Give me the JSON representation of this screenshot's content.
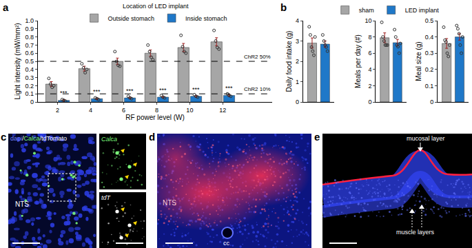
{
  "chart_data": [
    {
      "type": "bar",
      "panel_label": "a",
      "legend_title": "Location of LED implant",
      "legend": "top",
      "categories": [
        2,
        4,
        6,
        8,
        10,
        12
      ],
      "x_label": "RF power level (W)",
      "y_label": "Light intensity (mW/mm²)",
      "ylim": [
        0,
        1
      ],
      "yticks": [
        0,
        0.1,
        0.2,
        0.3,
        0.4,
        0.5,
        0.6,
        0.7,
        0.8,
        0.9,
        {
          "value": 1,
          "label": "1.0"
        }
      ],
      "series": [
        {
          "name": "Outside stomach",
          "color": "#a6a6a6",
          "values": [
            0.22,
            0.41,
            0.5,
            0.6,
            0.67,
            0.74
          ],
          "errors": [
            0.03,
            0.03,
            0.04,
            0.04,
            0.05,
            0.05
          ],
          "points": [
            [
              0.29,
              0.22,
              0.18,
              0.2
            ],
            [
              0.47,
              0.42,
              0.36,
              0.4
            ],
            [
              0.62,
              0.5,
              0.45,
              0.44
            ],
            [
              0.7,
              0.62,
              0.55,
              0.52
            ],
            [
              0.82,
              0.68,
              0.62,
              0.6
            ],
            [
              0.88,
              0.75,
              0.67,
              0.65
            ]
          ]
        },
        {
          "name": "Inside stomach",
          "color": "#1f78c8",
          "values": [
            0.02,
            0.04,
            0.05,
            0.06,
            0.07,
            0.08
          ],
          "errors": [
            0.01,
            0.01,
            0.01,
            0.01,
            0.01,
            0.01
          ],
          "points": [
            [
              0.03,
              0.02,
              0.01
            ],
            [
              0.05,
              0.04,
              0.03
            ],
            [
              0.07,
              0.05,
              0.04
            ],
            [
              0.08,
              0.06,
              0.05
            ],
            [
              0.09,
              0.07,
              0.06
            ],
            [
              0.1,
              0.08,
              0.07
            ]
          ]
        }
      ],
      "significance": [
        "***",
        "***",
        "***",
        "***",
        "***",
        "***"
      ],
      "reference_lines": [
        {
          "value": 0.5,
          "label": "ChR2 50%"
        },
        {
          "value": 0.1,
          "label": "ChR2 10%"
        }
      ]
    },
    {
      "type": "bar",
      "panel_label": "b",
      "legend": "top",
      "tick_labels": "y",
      "categories": [
        "sham",
        "LED implant"
      ],
      "colors": [
        "#a6a6a6",
        "#1f78c8"
      ],
      "y_label": "Daily food intake (g)",
      "ylim": [
        0,
        4
      ],
      "yticks": [
        0,
        1,
        2,
        3,
        4
      ],
      "values": [
        2.9,
        2.85
      ],
      "errors": [
        0.25,
        0.15
      ],
      "points": [
        [
          3.7,
          3.3,
          2.7,
          2.5,
          2.3,
          3.2
        ],
        [
          3.3,
          3.0,
          2.8,
          2.7,
          2.5
        ]
      ]
    },
    {
      "type": "bar",
      "tick_labels": "y",
      "categories": [
        "sham",
        "LED implant"
      ],
      "colors": [
        "#a6a6a6",
        "#1f78c8"
      ],
      "y_label": "Meals per day (#)",
      "ylim": [
        0,
        10
      ],
      "yticks": [
        0,
        2,
        4,
        6,
        8,
        10
      ],
      "values": [
        7.9,
        7.3
      ],
      "errors": [
        0.6,
        0.4
      ],
      "points": [
        [
          9.8,
          8.0,
          7.5,
          7.0,
          7.0,
          7.0
        ],
        [
          8.9,
          8.0,
          7.0,
          6.8,
          6.0,
          7.2
        ]
      ]
    },
    {
      "type": "bar",
      "tick_labels": "y",
      "categories": [
        "sham",
        "LED implant"
      ],
      "colors": [
        "#a6a6a6",
        "#1f78c8"
      ],
      "y_label": "Meal size (g)",
      "ylim": [
        0,
        0.5
      ],
      "yticks": [
        0,
        0.1,
        0.2,
        0.3,
        0.4,
        0.5
      ],
      "values": [
        0.36,
        0.4
      ],
      "errors": [
        0.03,
        0.02
      ],
      "points": [
        [
          0.46,
          0.38,
          0.37,
          0.3,
          0.28,
          0.35
        ],
        [
          0.47,
          0.45,
          0.42,
          0.35,
          0.3,
          0.4
        ]
      ]
    }
  ],
  "images": [
    {
      "panel_label": "c",
      "label_parts": [
        {
          "text": "dapi",
          "color": "#7080ff"
        },
        {
          "text": "/",
          "color": "#ffffff"
        },
        {
          "text": "Calca",
          "color": "#7cfc7c"
        },
        {
          "text": "/",
          "color": "#ffffff"
        },
        {
          "text": "tdTomato",
          "color": "#ffffff"
        }
      ],
      "region_label": "NTS",
      "insets": [
        {
          "label": "Calca",
          "color": "#7cfc7c"
        },
        {
          "label": "tdT",
          "color": "#ffffff"
        }
      ]
    },
    {
      "panel_label": "d",
      "labels": [
        "NTS",
        "cc"
      ]
    },
    {
      "panel_label": "e",
      "labels": [
        "mucosal layer",
        "muscle layers"
      ]
    }
  ]
}
